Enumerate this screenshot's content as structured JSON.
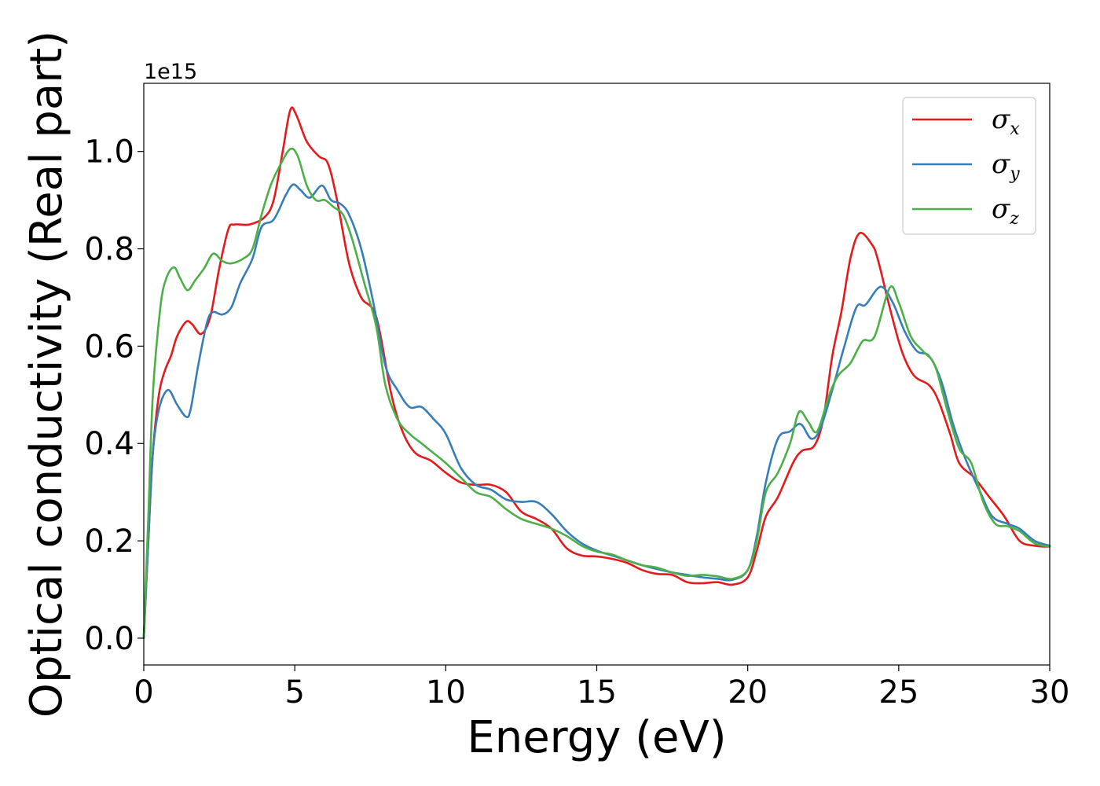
{
  "chart_data": {
    "type": "line",
    "title": "",
    "xlabel": "Energy (eV)",
    "ylabel": "Optical conductivity (Real part)",
    "y_offset_label": "1e15",
    "xlim": [
      0,
      30
    ],
    "ylim": [
      -0.055,
      1.14
    ],
    "xticks": [
      0,
      5,
      10,
      15,
      20,
      25,
      30
    ],
    "xtick_labels": [
      "0",
      "5",
      "10",
      "15",
      "20",
      "25",
      "30"
    ],
    "yticks": [
      0.0,
      0.2,
      0.4,
      0.6,
      0.8,
      1.0
    ],
    "ytick_labels": [
      "0.0",
      "0.2",
      "0.4",
      "0.6",
      "0.8",
      "1.0"
    ],
    "grid": false,
    "legend_position": "top-right",
    "series": [
      {
        "name": "σx",
        "legend_base": "σ",
        "legend_sub": "x",
        "color": "#e41a1c",
        "points": [
          [
            0,
            0.0
          ],
          [
            0.15,
            0.2
          ],
          [
            0.3,
            0.38
          ],
          [
            0.5,
            0.5
          ],
          [
            0.7,
            0.55
          ],
          [
            0.9,
            0.58
          ],
          [
            1.1,
            0.62
          ],
          [
            1.4,
            0.65
          ],
          [
            1.6,
            0.645
          ],
          [
            1.9,
            0.625
          ],
          [
            2.2,
            0.66
          ],
          [
            2.5,
            0.76
          ],
          [
            2.8,
            0.84
          ],
          [
            3.0,
            0.85
          ],
          [
            3.5,
            0.85
          ],
          [
            4.0,
            0.865
          ],
          [
            4.3,
            0.9
          ],
          [
            4.6,
            1.0
          ],
          [
            4.85,
            1.085
          ],
          [
            5.05,
            1.075
          ],
          [
            5.4,
            1.02
          ],
          [
            5.8,
            0.99
          ],
          [
            6.1,
            0.975
          ],
          [
            6.4,
            0.9
          ],
          [
            6.8,
            0.77
          ],
          [
            7.2,
            0.7
          ],
          [
            7.7,
            0.66
          ],
          [
            8.2,
            0.5
          ],
          [
            8.6,
            0.42
          ],
          [
            9.0,
            0.38
          ],
          [
            9.5,
            0.365
          ],
          [
            10.0,
            0.34
          ],
          [
            10.5,
            0.32
          ],
          [
            11.0,
            0.315
          ],
          [
            11.5,
            0.315
          ],
          [
            12.0,
            0.3
          ],
          [
            12.5,
            0.26
          ],
          [
            13.0,
            0.245
          ],
          [
            13.5,
            0.225
          ],
          [
            14.0,
            0.185
          ],
          [
            14.5,
            0.17
          ],
          [
            15.0,
            0.168
          ],
          [
            15.5,
            0.163
          ],
          [
            16.0,
            0.155
          ],
          [
            16.5,
            0.14
          ],
          [
            17.0,
            0.132
          ],
          [
            17.5,
            0.13
          ],
          [
            18.0,
            0.115
          ],
          [
            18.5,
            0.113
          ],
          [
            19.0,
            0.115
          ],
          [
            19.5,
            0.11
          ],
          [
            20.0,
            0.125
          ],
          [
            20.3,
            0.18
          ],
          [
            20.6,
            0.25
          ],
          [
            21.0,
            0.29
          ],
          [
            21.5,
            0.36
          ],
          [
            21.8,
            0.385
          ],
          [
            22.2,
            0.395
          ],
          [
            22.5,
            0.45
          ],
          [
            22.8,
            0.58
          ],
          [
            23.1,
            0.67
          ],
          [
            23.4,
            0.78
          ],
          [
            23.7,
            0.832
          ],
          [
            24.1,
            0.81
          ],
          [
            24.3,
            0.78
          ],
          [
            24.7,
            0.68
          ],
          [
            25.1,
            0.59
          ],
          [
            25.5,
            0.54
          ],
          [
            26.0,
            0.52
          ],
          [
            26.3,
            0.49
          ],
          [
            26.7,
            0.42
          ],
          [
            27.0,
            0.36
          ],
          [
            27.5,
            0.33
          ],
          [
            28.0,
            0.29
          ],
          [
            28.5,
            0.25
          ],
          [
            29.0,
            0.2
          ],
          [
            29.5,
            0.19
          ],
          [
            30.0,
            0.188
          ]
        ]
      },
      {
        "name": "σy",
        "legend_base": "σ",
        "legend_sub": "y",
        "color": "#377eb8",
        "points": [
          [
            0,
            0.0
          ],
          [
            0.15,
            0.2
          ],
          [
            0.3,
            0.38
          ],
          [
            0.5,
            0.47
          ],
          [
            0.8,
            0.51
          ],
          [
            1.1,
            0.48
          ],
          [
            1.4,
            0.455
          ],
          [
            1.55,
            0.47
          ],
          [
            1.8,
            0.56
          ],
          [
            2.1,
            0.65
          ],
          [
            2.3,
            0.67
          ],
          [
            2.6,
            0.665
          ],
          [
            2.9,
            0.68
          ],
          [
            3.2,
            0.73
          ],
          [
            3.6,
            0.78
          ],
          [
            3.9,
            0.845
          ],
          [
            4.3,
            0.86
          ],
          [
            4.7,
            0.91
          ],
          [
            4.95,
            0.932
          ],
          [
            5.2,
            0.92
          ],
          [
            5.5,
            0.905
          ],
          [
            5.9,
            0.93
          ],
          [
            6.2,
            0.9
          ],
          [
            6.5,
            0.893
          ],
          [
            6.8,
            0.87
          ],
          [
            7.2,
            0.8
          ],
          [
            7.6,
            0.69
          ],
          [
            8.0,
            0.56
          ],
          [
            8.4,
            0.51
          ],
          [
            8.8,
            0.475
          ],
          [
            9.2,
            0.475
          ],
          [
            9.6,
            0.45
          ],
          [
            10.0,
            0.42
          ],
          [
            10.5,
            0.35
          ],
          [
            11.0,
            0.315
          ],
          [
            11.5,
            0.305
          ],
          [
            12.0,
            0.285
          ],
          [
            12.5,
            0.28
          ],
          [
            13.0,
            0.28
          ],
          [
            13.5,
            0.255
          ],
          [
            14.0,
            0.22
          ],
          [
            14.5,
            0.195
          ],
          [
            15.0,
            0.18
          ],
          [
            15.5,
            0.17
          ],
          [
            16.0,
            0.16
          ],
          [
            16.5,
            0.15
          ],
          [
            17.0,
            0.142
          ],
          [
            17.5,
            0.135
          ],
          [
            18.0,
            0.13
          ],
          [
            18.5,
            0.125
          ],
          [
            19.0,
            0.122
          ],
          [
            19.5,
            0.12
          ],
          [
            20.0,
            0.14
          ],
          [
            20.3,
            0.21
          ],
          [
            20.6,
            0.32
          ],
          [
            21.0,
            0.41
          ],
          [
            21.4,
            0.425
          ],
          [
            21.75,
            0.44
          ],
          [
            22.1,
            0.41
          ],
          [
            22.4,
            0.43
          ],
          [
            22.8,
            0.51
          ],
          [
            23.2,
            0.6
          ],
          [
            23.6,
            0.68
          ],
          [
            23.9,
            0.685
          ],
          [
            24.4,
            0.722
          ],
          [
            24.8,
            0.69
          ],
          [
            25.2,
            0.63
          ],
          [
            25.6,
            0.59
          ],
          [
            26.0,
            0.58
          ],
          [
            26.4,
            0.53
          ],
          [
            26.8,
            0.44
          ],
          [
            27.2,
            0.37
          ],
          [
            27.7,
            0.3
          ],
          [
            28.1,
            0.25
          ],
          [
            28.6,
            0.235
          ],
          [
            29.0,
            0.225
          ],
          [
            29.5,
            0.2
          ],
          [
            30.0,
            0.19
          ]
        ]
      },
      {
        "name": "σz",
        "legend_base": "σ",
        "legend_sub": "z",
        "color": "#4daf4a",
        "points": [
          [
            0,
            0.0
          ],
          [
            0.15,
            0.25
          ],
          [
            0.3,
            0.5
          ],
          [
            0.55,
            0.68
          ],
          [
            0.75,
            0.74
          ],
          [
            1.0,
            0.762
          ],
          [
            1.2,
            0.74
          ],
          [
            1.45,
            0.715
          ],
          [
            1.7,
            0.735
          ],
          [
            2.0,
            0.76
          ],
          [
            2.3,
            0.79
          ],
          [
            2.6,
            0.775
          ],
          [
            2.9,
            0.77
          ],
          [
            3.3,
            0.78
          ],
          [
            3.6,
            0.8
          ],
          [
            3.9,
            0.87
          ],
          [
            4.2,
            0.93
          ],
          [
            4.5,
            0.97
          ],
          [
            4.85,
            1.005
          ],
          [
            5.1,
            0.99
          ],
          [
            5.4,
            0.93
          ],
          [
            5.7,
            0.9
          ],
          [
            6.0,
            0.9
          ],
          [
            6.3,
            0.885
          ],
          [
            6.6,
            0.87
          ],
          [
            6.9,
            0.82
          ],
          [
            7.3,
            0.73
          ],
          [
            7.7,
            0.64
          ],
          [
            8.0,
            0.52
          ],
          [
            8.4,
            0.45
          ],
          [
            8.8,
            0.42
          ],
          [
            9.2,
            0.4
          ],
          [
            9.6,
            0.38
          ],
          [
            10.0,
            0.36
          ],
          [
            10.5,
            0.33
          ],
          [
            11.0,
            0.3
          ],
          [
            11.5,
            0.29
          ],
          [
            12.0,
            0.265
          ],
          [
            12.5,
            0.245
          ],
          [
            13.0,
            0.235
          ],
          [
            13.5,
            0.225
          ],
          [
            14.0,
            0.21
          ],
          [
            14.5,
            0.19
          ],
          [
            15.0,
            0.178
          ],
          [
            15.5,
            0.172
          ],
          [
            16.0,
            0.16
          ],
          [
            16.5,
            0.15
          ],
          [
            17.0,
            0.145
          ],
          [
            17.5,
            0.135
          ],
          [
            18.0,
            0.128
          ],
          [
            18.5,
            0.13
          ],
          [
            19.0,
            0.127
          ],
          [
            19.5,
            0.122
          ],
          [
            20.0,
            0.14
          ],
          [
            20.3,
            0.2
          ],
          [
            20.6,
            0.3
          ],
          [
            21.0,
            0.34
          ],
          [
            21.4,
            0.4
          ],
          [
            21.7,
            0.465
          ],
          [
            22.0,
            0.445
          ],
          [
            22.3,
            0.425
          ],
          [
            22.7,
            0.5
          ],
          [
            23.0,
            0.54
          ],
          [
            23.4,
            0.565
          ],
          [
            23.8,
            0.61
          ],
          [
            24.2,
            0.62
          ],
          [
            24.7,
            0.72
          ],
          [
            25.0,
            0.69
          ],
          [
            25.4,
            0.62
          ],
          [
            25.8,
            0.59
          ],
          [
            26.2,
            0.56
          ],
          [
            26.6,
            0.47
          ],
          [
            27.0,
            0.39
          ],
          [
            27.4,
            0.36
          ],
          [
            27.8,
            0.28
          ],
          [
            28.2,
            0.235
          ],
          [
            28.6,
            0.23
          ],
          [
            29.0,
            0.22
          ],
          [
            29.5,
            0.195
          ],
          [
            30.0,
            0.188
          ]
        ]
      }
    ]
  }
}
